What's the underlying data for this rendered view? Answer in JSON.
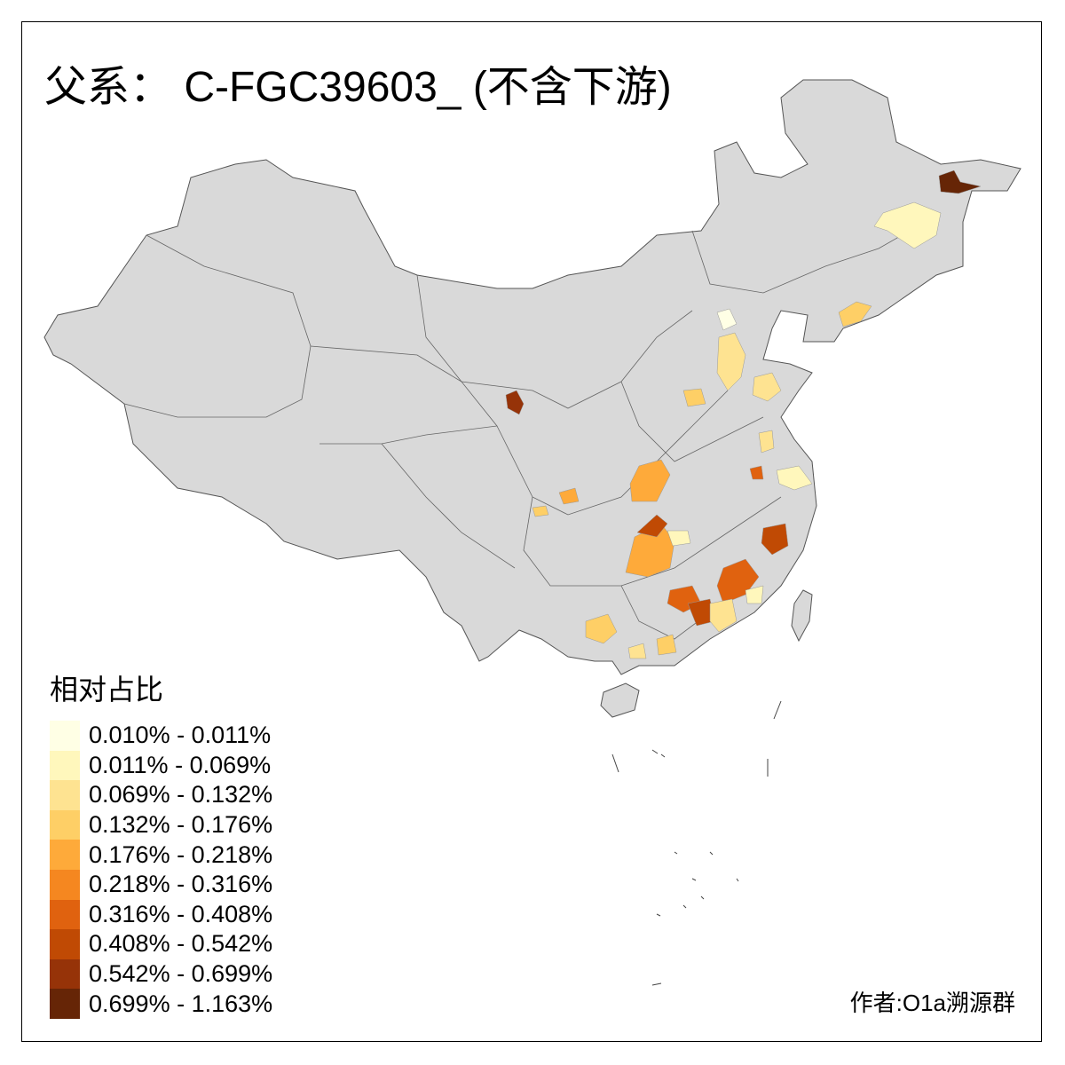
{
  "title": "父系： C-FGC39603_ (不含下游)",
  "legend": {
    "title": "相对占比",
    "items": [
      {
        "label": "0.010% - 0.011%",
        "color": "#FFFFE5"
      },
      {
        "label": "0.011% - 0.069%",
        "color": "#FFF7BC"
      },
      {
        "label": "0.069% - 0.132%",
        "color": "#FEE391"
      },
      {
        "label": "0.132% - 0.176%",
        "color": "#FECF66"
      },
      {
        "label": "0.176% - 0.218%",
        "color": "#FEAA3A"
      },
      {
        "label": "0.218% - 0.316%",
        "color": "#F58720"
      },
      {
        "label": "0.316% - 0.408%",
        "color": "#E0620F"
      },
      {
        "label": "0.408% - 0.542%",
        "color": "#C04A04"
      },
      {
        "label": "0.542% - 0.699%",
        "color": "#963308"
      },
      {
        "label": "0.699% - 1.163%",
        "color": "#662506"
      }
    ]
  },
  "no_data_color": "#D9D9D9",
  "credit": "作者:O1a溯源群"
}
